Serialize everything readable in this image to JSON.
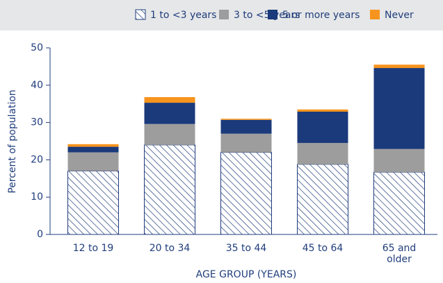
{
  "chart_data": {
    "type": "stacked_bar",
    "categories": [
      "12 to 19",
      "20 to 34",
      "35 to 44",
      "45 to 64",
      "65 and older"
    ],
    "series": [
      {
        "name": "1 to <3 years",
        "color": "#1f3d7c",
        "pattern": "hatch",
        "values": [
          17,
          24,
          22,
          18.8,
          16.7
        ]
      },
      {
        "name": "3 to <5 years",
        "color": "#9d9d9d",
        "values": [
          5,
          5.6,
          5,
          5.7,
          6.2
        ]
      },
      {
        "name": "5 or more years",
        "color": "#1b3a7b",
        "values": [
          1.5,
          5.7,
          3.7,
          8.4,
          21.7
        ]
      },
      {
        "name": "Never",
        "color": "#f7941d",
        "values": [
          0.7,
          1.5,
          0.3,
          0.6,
          0.9
        ]
      }
    ],
    "y_label": "Percent of population",
    "x_label": "AGE GROUP (YEARS)",
    "ylim": [
      0,
      50
    ],
    "yticks": [
      0,
      10,
      20,
      30,
      40,
      50
    ],
    "legend": "top",
    "grid": false
  }
}
